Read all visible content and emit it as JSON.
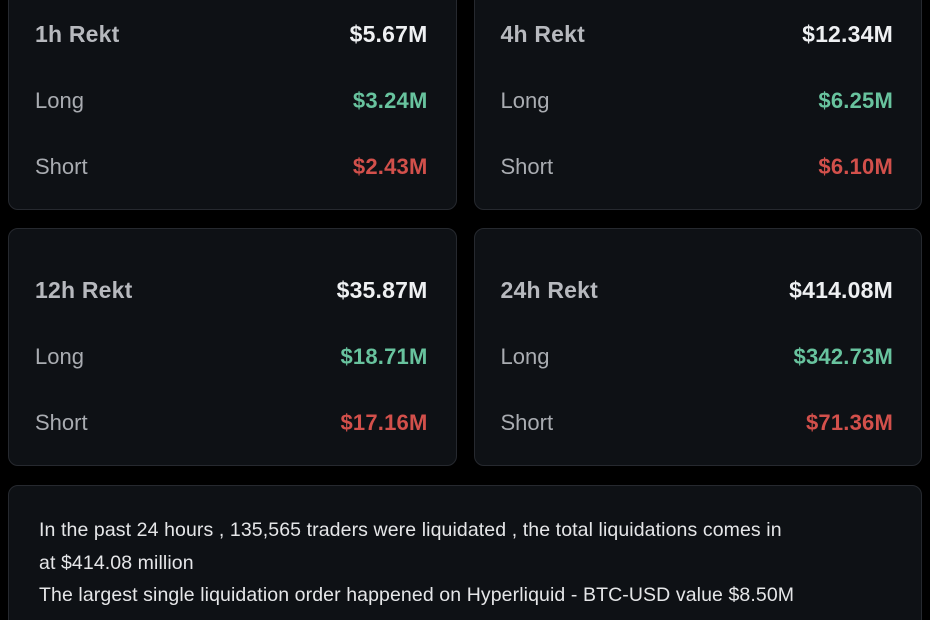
{
  "theme": {
    "background": "#000000",
    "card_background": "#0e1115",
    "card_border": "#26292f",
    "total_color": "#eef0f2",
    "long_color": "#68c39e",
    "short_color": "#d2504b",
    "label_color": "#a9acb1",
    "title_color": "#b7b9be"
  },
  "cards": [
    {
      "title": "1h Rekt",
      "total": "$5.67M",
      "long_label": "Long",
      "long_value": "$3.24M",
      "short_label": "Short",
      "short_value": "$2.43M"
    },
    {
      "title": "4h Rekt",
      "total": "$12.34M",
      "long_label": "Long",
      "long_value": "$6.25M",
      "short_label": "Short",
      "short_value": "$6.10M"
    },
    {
      "title": "12h Rekt",
      "total": "$35.87M",
      "long_label": "Long",
      "long_value": "$18.71M",
      "short_label": "Short",
      "short_value": "$17.16M"
    },
    {
      "title": "24h Rekt",
      "total": "$414.08M",
      "long_label": "Long",
      "long_value": "$342.73M",
      "short_label": "Short",
      "short_value": "$71.36M"
    }
  ],
  "summary": {
    "lines": [
      "In the past 24 hours , 135,565 traders were liquidated , the total liquidations comes in",
      "at $414.08 million",
      "The largest single liquidation order happened on Hyperliquid - BTC-USD value $8.50M"
    ]
  }
}
